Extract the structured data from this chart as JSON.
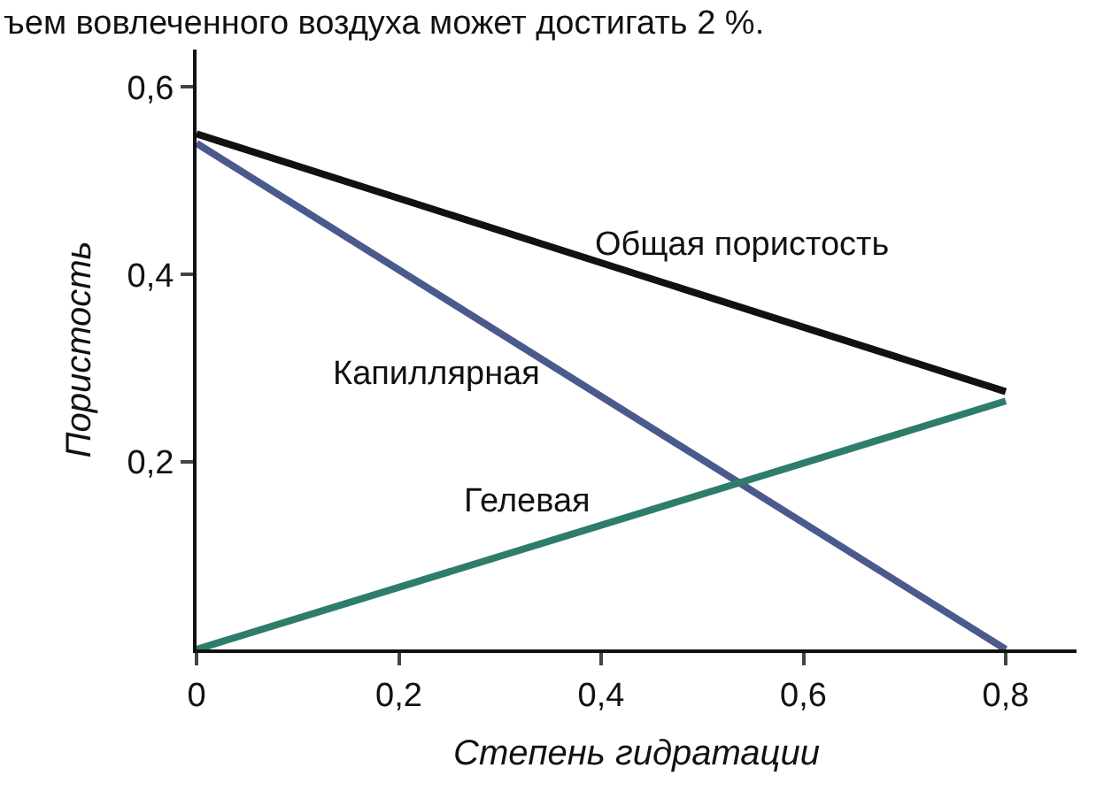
{
  "chart_data": {
    "type": "line",
    "xlabel": "Степень гидратации",
    "ylabel": "Пористость",
    "x": [
      0,
      0.8
    ],
    "series": [
      {
        "name": "Общая пористость",
        "color": "#111111",
        "values": [
          0.55,
          0.275
        ]
      },
      {
        "name": "Капиллярная",
        "color": "#4a5a8c",
        "values": [
          0.54,
          0
        ]
      },
      {
        "name": "Гелевая",
        "color": "#2e7d6b",
        "values": [
          0,
          0.265
        ]
      }
    ],
    "xlim": [
      0,
      0.87
    ],
    "ylim": [
      0,
      0.64
    ],
    "xticks": [
      0,
      {
        "value": 0.2,
        "label": "0,2"
      },
      {
        "value": 0.4,
        "label": "0,4"
      },
      {
        "value": 0.6,
        "label": "0,6"
      },
      {
        "value": 0.8,
        "label": "0,8"
      }
    ],
    "yticks": [
      {
        "value": 0.2,
        "label": "0,2"
      },
      {
        "value": 0.4,
        "label": "0,4"
      },
      {
        "value": 0.6,
        "label": "0,6"
      }
    ],
    "annotations": [
      "ъем вовлеченного воздуха может достигать 2 %."
    ],
    "grid": false,
    "legend": false,
    "marker": "none",
    "line_style": "solid"
  }
}
